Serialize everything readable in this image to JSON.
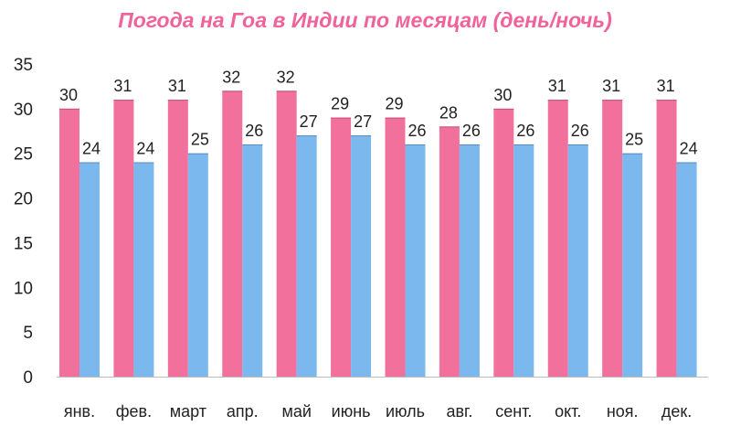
{
  "chart_data": {
    "type": "bar",
    "title": "Погода на Гоа в Индии по месяцам (день/ночь)",
    "xlabel": "",
    "ylabel": "",
    "categories": [
      "янв.",
      "фев.",
      "март",
      "апр.",
      "май",
      "июнь",
      "июль",
      "авг.",
      "сент.",
      "окт.",
      "ноя.",
      "дек."
    ],
    "series": [
      {
        "color": "#f2709c",
        "values": [
          30,
          31,
          31,
          32,
          32,
          29,
          29,
          28,
          30,
          31,
          31,
          31
        ]
      },
      {
        "color": "#7ab8ee",
        "values": [
          24,
          24,
          25,
          26,
          27,
          27,
          26,
          26,
          26,
          26,
          25,
          24
        ]
      }
    ],
    "ylim": [
      0,
      35
    ],
    "yticks": [
      0,
      5,
      10,
      15,
      20,
      25,
      30,
      35
    ],
    "grid": false,
    "legend": "none",
    "data_labels": true
  }
}
